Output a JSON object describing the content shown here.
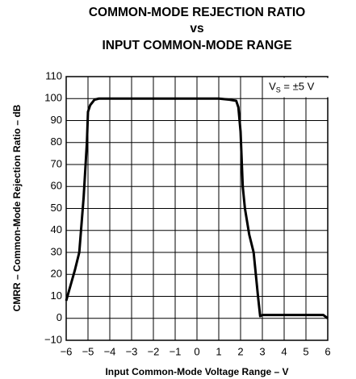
{
  "chart_data": {
    "type": "line",
    "title": [
      "COMMON-MODE REJECTION RATIO",
      "vs",
      "INPUT COMMON-MODE RANGE"
    ],
    "xlabel": "Input Common-Mode Voltage Range – V",
    "ylabel": "CMRR – Common-Mode Rejection Ratio – dB",
    "annotation": {
      "main": "V",
      "sub": "S",
      "rest": " = ±5 V"
    },
    "x": [
      -6,
      -5.8,
      -5.6,
      -5.4,
      -5.2,
      -5.05,
      -5,
      -4.9,
      -4.7,
      -4.5,
      1,
      1.5,
      1.8,
      1.9,
      2,
      2.1,
      2.2,
      2.4,
      2.6,
      2.8,
      2.9,
      3,
      5.5,
      5.8,
      6
    ],
    "series": [
      {
        "color": "#000000",
        "values": [
          8,
          15,
          22,
          30,
          55,
          80,
          94,
          97,
          99.5,
          100,
          100,
          99.5,
          99,
          96,
          85,
          60,
          50,
          38,
          30,
          10,
          1,
          1.5,
          1.5,
          1.5,
          0
        ]
      }
    ],
    "xlim": [
      -6,
      6
    ],
    "xticks": [
      {
        "value": -6,
        "label": "−6"
      },
      {
        "value": -5,
        "label": "−5"
      },
      {
        "value": -4,
        "label": "−4"
      },
      {
        "value": -3,
        "label": "−3"
      },
      {
        "value": -2,
        "label": "−2"
      },
      {
        "value": -1,
        "label": "−1"
      },
      0,
      1,
      2,
      3,
      4,
      5,
      6
    ],
    "ylim": [
      -10,
      110
    ],
    "yticks": [
      {
        "value": -10,
        "label": "−10"
      },
      0,
      10,
      20,
      30,
      40,
      50,
      60,
      70,
      80,
      90,
      100,
      110
    ],
    "grid": true
  }
}
